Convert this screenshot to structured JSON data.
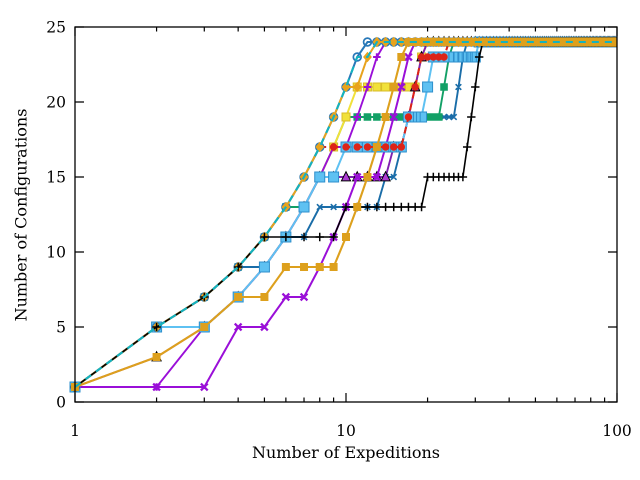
{
  "chart_data": {
    "type": "line",
    "title": "",
    "xlabel": "Number of Expeditions",
    "ylabel": "Number of Configurations",
    "x_scale": "log",
    "xlim": [
      1,
      100
    ],
    "ylim": [
      0,
      25
    ],
    "x_ticks_major": [
      1,
      10,
      100
    ],
    "x_tick_labels": [
      "1",
      "10",
      "100"
    ],
    "x_ticks_minor": [
      2,
      3,
      4,
      5,
      6,
      7,
      8,
      9,
      20,
      30,
      40,
      50,
      60,
      70,
      80,
      90
    ],
    "y_ticks_major": [
      0,
      5,
      10,
      15,
      20,
      25
    ],
    "y_tick_labels": [
      "0",
      "5",
      "10",
      "15",
      "20",
      "25"
    ],
    "grid": false,
    "legend": "none",
    "frame": {
      "background": "#ffffff",
      "spine_color": "#000000",
      "tick_color": "#000000",
      "text_color": "#000000"
    },
    "marker_at_every_integer_x": true,
    "series": [
      {
        "name": "petrol-blue-x",
        "color": "#1a6da8",
        "marker": "x",
        "size": 2.8,
        "line_width": 1.9,
        "steps": [
          [
            1,
            1
          ],
          [
            2,
            5
          ],
          [
            3,
            7
          ],
          [
            4,
            9
          ],
          [
            6,
            11
          ],
          [
            8,
            13
          ],
          [
            14,
            15
          ],
          [
            16,
            17
          ],
          [
            17,
            19
          ],
          [
            26,
            21
          ],
          [
            27,
            23
          ],
          [
            28,
            24
          ]
        ]
      },
      {
        "name": "green-square",
        "color": "#12a066",
        "marker": "square",
        "size": 3.8,
        "line_width": 1.9,
        "steps": [
          [
            1,
            1
          ],
          [
            2,
            5
          ],
          [
            3,
            7
          ],
          [
            4,
            9
          ],
          [
            5,
            11
          ],
          [
            6,
            13
          ],
          [
            8,
            15
          ],
          [
            9,
            17
          ],
          [
            10,
            19
          ],
          [
            23,
            21
          ],
          [
            24,
            23
          ],
          [
            25,
            24
          ]
        ]
      },
      {
        "name": "yellow-square",
        "color": "#f1e13a",
        "edge": "#d8bc28",
        "marker": "square",
        "size": 4,
        "line_width": 2,
        "steps": [
          [
            1,
            1
          ],
          [
            2,
            5
          ],
          [
            4,
            7
          ],
          [
            5,
            9
          ],
          [
            6,
            11
          ],
          [
            7,
            13
          ],
          [
            8,
            15
          ],
          [
            9,
            17
          ],
          [
            10,
            19
          ],
          [
            11,
            21
          ],
          [
            19,
            23
          ],
          [
            20,
            24
          ]
        ]
      },
      {
        "name": "purple-plus",
        "color": "#9a0fd8",
        "marker": "plus",
        "size": 3.8,
        "stroke_width": 2.1,
        "line_width": 1.9,
        "steps": [
          [
            1,
            1
          ],
          [
            3,
            5
          ],
          [
            4,
            7
          ],
          [
            5,
            9
          ],
          [
            6,
            11
          ],
          [
            7,
            13
          ],
          [
            8,
            15
          ],
          [
            9,
            17
          ],
          [
            11,
            19
          ],
          [
            12,
            21
          ],
          [
            13,
            23
          ],
          [
            14,
            24
          ]
        ]
      },
      {
        "name": "orchid-triangle",
        "color": "#8021b0",
        "marker": "triangle",
        "fill": "#ad3bd4",
        "edge": "#000000",
        "size": 4.6,
        "line_width": 1.9,
        "steps": [
          [
            1,
            1
          ],
          [
            2,
            3
          ],
          [
            3,
            5
          ],
          [
            4,
            7
          ],
          [
            5,
            9
          ],
          [
            6,
            11
          ],
          [
            7,
            13
          ],
          [
            8,
            15
          ],
          [
            15,
            17
          ],
          [
            17,
            19
          ],
          [
            18,
            21
          ],
          [
            19,
            23
          ],
          [
            20,
            24
          ]
        ]
      },
      {
        "name": "darkviolet-x",
        "color": "#9a0fd8",
        "marker": "x",
        "size": 3.4,
        "stroke_width": 2.3,
        "line_width": 2,
        "steps": [
          [
            1,
            1
          ],
          [
            4,
            5
          ],
          [
            6,
            7
          ],
          [
            8,
            9
          ],
          [
            9,
            11
          ],
          [
            10,
            13
          ],
          [
            11,
            15
          ],
          [
            14,
            17
          ],
          [
            15,
            19
          ],
          [
            16,
            21
          ],
          [
            17,
            23
          ],
          [
            18,
            24
          ]
        ]
      },
      {
        "name": "skyblue-square",
        "color": "#5ec1f2",
        "edge": "#2e8fcc",
        "marker": "square",
        "size": 5,
        "line_width": 2,
        "steps": [
          [
            1,
            1
          ],
          [
            2,
            5
          ],
          [
            4,
            7
          ],
          [
            5,
            9
          ],
          [
            6,
            11
          ],
          [
            7,
            13
          ],
          [
            8,
            15
          ],
          [
            10,
            17
          ],
          [
            17,
            19
          ],
          [
            20,
            21
          ],
          [
            21,
            23
          ],
          [
            31,
            24
          ]
        ]
      },
      {
        "name": "red-circle-dashed",
        "color": "#dd2418",
        "marker": "circle",
        "size": 3.7,
        "dash": "7 5",
        "line_width": 2,
        "steps": [
          [
            1,
            1
          ],
          [
            2,
            5
          ],
          [
            3,
            7
          ],
          [
            4,
            9
          ],
          [
            5,
            11
          ],
          [
            6,
            13
          ],
          [
            7,
            15
          ],
          [
            8,
            17
          ],
          [
            17,
            19
          ],
          [
            18,
            21
          ],
          [
            19,
            23
          ],
          [
            24,
            24
          ]
        ]
      },
      {
        "name": "steelblue-circle",
        "color": "#2878b8",
        "marker": "circle-open",
        "size": 3.9,
        "line_width": 2,
        "steps": [
          [
            1,
            1
          ],
          [
            2,
            5
          ],
          [
            3,
            7
          ],
          [
            4,
            9
          ],
          [
            5,
            11
          ],
          [
            6,
            13
          ],
          [
            7,
            15
          ],
          [
            8,
            17
          ],
          [
            9,
            19
          ],
          [
            10,
            21
          ],
          [
            11,
            23
          ],
          [
            12,
            24
          ]
        ]
      },
      {
        "name": "orange-diamond",
        "color": "#e8a31d",
        "marker": "diamond",
        "size": 4.4,
        "line_width": 2,
        "steps": [
          [
            1,
            1
          ],
          [
            2,
            5
          ],
          [
            3,
            7
          ],
          [
            4,
            9
          ],
          [
            5,
            11
          ],
          [
            6,
            13
          ],
          [
            7,
            15
          ],
          [
            8,
            17
          ],
          [
            9,
            19
          ],
          [
            10,
            21
          ],
          [
            12,
            23
          ],
          [
            13,
            24
          ]
        ]
      },
      {
        "name": "black-plus",
        "color": "#000000",
        "marker": "plus",
        "size": 4.2,
        "stroke_width": 1.5,
        "line_width": 1.6,
        "steps": [
          [
            1,
            1
          ],
          [
            2,
            5
          ],
          [
            3,
            7
          ],
          [
            4,
            9
          ],
          [
            5,
            11
          ],
          [
            10,
            13
          ],
          [
            20,
            15
          ],
          [
            28,
            17
          ],
          [
            29,
            19
          ],
          [
            30,
            21
          ],
          [
            31,
            23
          ],
          [
            32,
            24
          ]
        ]
      },
      {
        "name": "goldenrod-square",
        "color": "#dda01d",
        "marker": "square",
        "size": 4,
        "line_width": 2.1,
        "steps": [
          [
            1,
            1
          ],
          [
            2,
            3
          ],
          [
            3,
            5
          ],
          [
            4,
            7
          ],
          [
            6,
            9
          ],
          [
            10,
            11
          ],
          [
            11,
            13
          ],
          [
            12,
            15
          ],
          [
            13,
            17
          ],
          [
            14,
            19
          ],
          [
            15,
            21
          ],
          [
            16,
            23
          ],
          [
            17,
            24
          ]
        ]
      },
      {
        "name": "teal-dashed",
        "color": "#13b3c0",
        "marker": "none",
        "size": 0,
        "dash": "7 6",
        "line_width": 2.1,
        "steps": [
          [
            1,
            1
          ],
          [
            2,
            5
          ],
          [
            3,
            7
          ],
          [
            4,
            9
          ],
          [
            5,
            11
          ],
          [
            6,
            13
          ],
          [
            7,
            15
          ],
          [
            8,
            17
          ],
          [
            9,
            19
          ],
          [
            10,
            21
          ],
          [
            11,
            23
          ],
          [
            13,
            24
          ]
        ]
      }
    ]
  }
}
